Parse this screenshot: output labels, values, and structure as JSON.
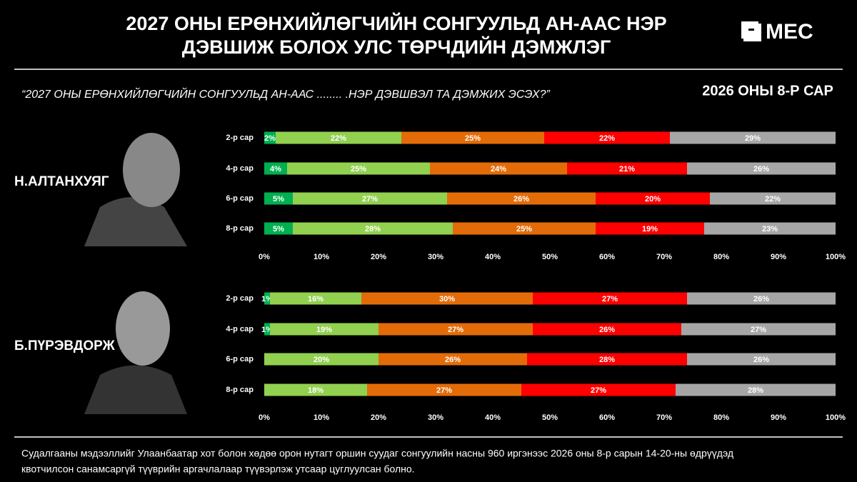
{
  "page": {
    "title": [
      "2027 ОНЫ ЕРӨНХИЙЛӨГЧИЙН СОНГУУЛЬД АН-ААС НЭР",
      "ДЭВШИЖ БОЛОХ УЛС ТӨРЧДИЙН ДЭМЖЛЭГ"
    ],
    "logo": "MEC",
    "question": "“2027 ОНЫ ЕРӨНХИЙЛӨГЧИЙН СОНГУУЛЬД АН-ААС ........ .НЭР ДЭВШВЭЛ ТА ДЭМЖИХ ЭСЭХ?”",
    "period": "2026 ОНЫ 8-Р САР",
    "footer": [
      "Судалгааны мэдээллийг Улаанбаатар хот болон хөдөө орон нутагт оршин суудаг сонгуулийн насны 960 иргэнээс 2026 оны 8-р сарын 14-20-ны өдрүүдэд",
      "квотчилсон санамсаргүй түүврийн аргачлалаар түүвэрлэж утсаар цуглуулсан болно."
    ]
  },
  "chart_data": [
    {
      "type": "stacked-bar-horizontal",
      "label": "Н.АЛТАНХУЯГ",
      "categories": [
        "2-р сар",
        "4-р сар",
        "6-р сар",
        "8-р сар"
      ],
      "series": [
        {
          "color": "#00b050",
          "values": [
            2,
            4,
            5,
            5
          ],
          "value_labels": [
            "2%",
            "4%",
            "5%",
            "5%"
          ]
        },
        {
          "color": "#92d050",
          "values": [
            22,
            25,
            27,
            28
          ],
          "value_labels": [
            "22%",
            "25%",
            "27%",
            "28%"
          ]
        },
        {
          "color": "#e36c09",
          "values": [
            25,
            24,
            26,
            25
          ],
          "value_labels": [
            "25%",
            "24%",
            "26%",
            "25%"
          ]
        },
        {
          "color": "#ff0000",
          "values": [
            22,
            21,
            20,
            19
          ],
          "value_labels": [
            "22%",
            "21%",
            "20%",
            "19%"
          ]
        },
        {
          "color": "#a6a6a6",
          "values": [
            29,
            26,
            22,
            23
          ],
          "value_labels": [
            "29%",
            "26%",
            "22%",
            "23%"
          ]
        }
      ],
      "xlim": [
        0,
        100
      ],
      "xticks": [
        {
          "value": 0,
          "label": "0%"
        },
        {
          "value": 10,
          "label": "10%"
        },
        {
          "value": 20,
          "label": "20%"
        },
        {
          "value": 30,
          "label": "30%"
        },
        {
          "value": 40,
          "label": "40%"
        },
        {
          "value": 50,
          "label": "50%"
        },
        {
          "value": 60,
          "label": "60%"
        },
        {
          "value": 70,
          "label": "70%"
        },
        {
          "value": 80,
          "label": "80%"
        },
        {
          "value": 90,
          "label": "90%"
        },
        {
          "value": 100,
          "label": "100%"
        }
      ],
      "grid": false
    },
    {
      "type": "stacked-bar-horizontal",
      "label": "Б.ПҮРЭВДОРЖ",
      "categories": [
        "2-р сар",
        "4-р сар",
        "6-р сар",
        "8-р сар"
      ],
      "series": [
        {
          "color": "#00b050",
          "values": [
            1,
            1,
            0,
            0
          ],
          "value_labels": [
            "1%",
            "1%",
            null,
            null
          ]
        },
        {
          "color": "#92d050",
          "values": [
            16,
            19,
            20,
            18
          ],
          "value_labels": [
            "16%",
            "19%",
            "20%",
            "18%"
          ]
        },
        {
          "color": "#e36c09",
          "values": [
            30,
            27,
            26,
            27
          ],
          "value_labels": [
            "30%",
            "27%",
            "26%",
            "27%"
          ]
        },
        {
          "color": "#ff0000",
          "values": [
            27,
            26,
            28,
            27
          ],
          "value_labels": [
            "27%",
            "26%",
            "28%",
            "27%"
          ]
        },
        {
          "color": "#a6a6a6",
          "values": [
            26,
            27,
            26,
            28
          ],
          "value_labels": [
            "26%",
            "27%",
            "26%",
            "28%"
          ]
        }
      ],
      "xlim": [
        0,
        100
      ],
      "xticks": [
        {
          "value": 0,
          "label": "0%"
        },
        {
          "value": 10,
          "label": "10%"
        },
        {
          "value": 20,
          "label": "20%"
        },
        {
          "value": 30,
          "label": "30%"
        },
        {
          "value": 40,
          "label": "40%"
        },
        {
          "value": 50,
          "label": "50%"
        },
        {
          "value": 60,
          "label": "60%"
        },
        {
          "value": 70,
          "label": "70%"
        },
        {
          "value": 80,
          "label": "80%"
        },
        {
          "value": 90,
          "label": "90%"
        },
        {
          "value": 100,
          "label": "100%"
        }
      ],
      "grid": false
    }
  ]
}
